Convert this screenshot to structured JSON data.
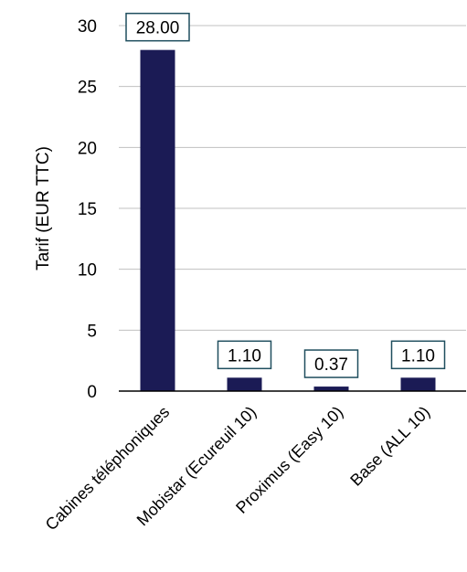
{
  "chart_data": {
    "type": "bar",
    "title": "",
    "xlabel": "",
    "ylabel": "Tarif (EUR TTC)",
    "categories": [
      "Cabines téléphoniques",
      "Mobistar (Ecureuil 10)",
      "Proximus (Easy 10)",
      "Base (ALL 10)"
    ],
    "values": [
      28.0,
      1.1,
      0.37,
      1.1
    ],
    "data_labels": [
      "28.00",
      "1.10",
      "0.37",
      "1.10"
    ],
    "ylim": [
      0,
      30
    ],
    "yticks": [
      0,
      5,
      10,
      15,
      20,
      25,
      30
    ],
    "grid": true,
    "legend": "none",
    "colors": {
      "bar": "#1b1b55",
      "grid": "#c0c0c0",
      "label_border": "#1f4e5e"
    }
  }
}
